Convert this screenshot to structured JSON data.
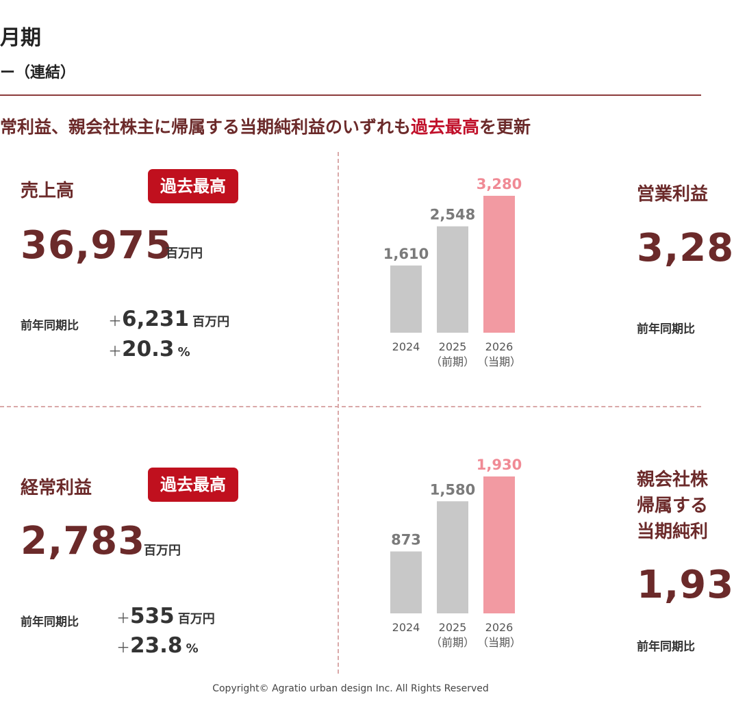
{
  "header": {
    "title": "月期",
    "subtitle": "ー（連結）"
  },
  "headline": {
    "text_before": "常利益、親会社株主に帰属する当期純利益のいずれも",
    "highlight": "過去最高",
    "text_after": "を更新"
  },
  "panels": {
    "sales": {
      "label": "売上高",
      "badge": "過去最高",
      "value": "36,975",
      "unit": "百万円",
      "yoy_label": "前年同期比",
      "delta_amount": "6,231",
      "delta_unit": "百万円",
      "delta_pct": "20.3",
      "pct_unit": "%"
    },
    "ordinary": {
      "label": "経常利益",
      "badge": "過去最高",
      "value": "2,783",
      "unit": "百万円",
      "yoy_label": "前年同期比",
      "delta_amount": "535",
      "delta_unit": "百万円",
      "delta_pct": "23.8",
      "pct_unit": "%"
    },
    "operating": {
      "label": "営業利益",
      "value": "3,28",
      "yoy_label": "前年同期比"
    },
    "net": {
      "label_line1": "親会社株",
      "label_line2": "帰属する",
      "label_line3": "当期純利",
      "value": "1,93",
      "yoy_label": "前年同期比"
    }
  },
  "plus_sign": "＋",
  "chart_data": [
    {
      "type": "bar",
      "categories": [
        "2024",
        "2025\n（前期）",
        "2026\n（当期）"
      ],
      "values": [
        1610,
        2548,
        3280
      ],
      "value_labels": [
        "1,610",
        "2,548",
        "3,280"
      ],
      "colors": [
        "#c8c8c8",
        "#c8c8c8",
        "#f29aa2"
      ],
      "ylim": [
        0,
        3280
      ]
    },
    {
      "type": "bar",
      "categories": [
        "2024",
        "2025\n（前期）",
        "2026\n（当期）"
      ],
      "values": [
        873,
        1580,
        1930
      ],
      "value_labels": [
        "873",
        "1,580",
        "1,930"
      ],
      "colors": [
        "#c8c8c8",
        "#c8c8c8",
        "#f29aa2"
      ],
      "ylim": [
        0,
        1930
      ]
    }
  ],
  "footer": {
    "copyright": "Copyright© Agratio urban design Inc. All Rights Reserved"
  }
}
